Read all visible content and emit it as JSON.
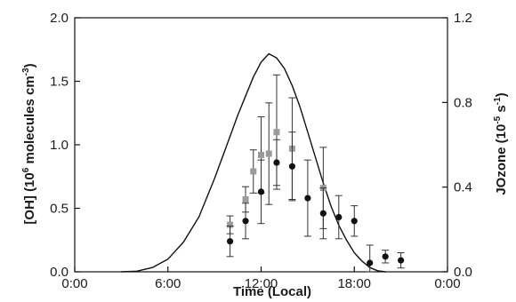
{
  "chart_data": {
    "type": "scatter",
    "xlabel": "Time (Local)",
    "ylabel_left": {
      "pre": "[OH] (10",
      "sup1": "6",
      "mid": " molecules cm",
      "sup2": "-3",
      "post": ")"
    },
    "ylabel_right": {
      "pre": "JOzone (10",
      "sup1": "-5",
      "mid": " s",
      "sup2": "-1",
      "post": ")"
    },
    "x_range_hours": [
      0,
      24
    ],
    "x_ticks": [
      {
        "hour": 0,
        "label": "0:00"
      },
      {
        "hour": 6,
        "label": "6:00"
      },
      {
        "hour": 12,
        "label": "12:00"
      },
      {
        "hour": 18,
        "label": "18:00"
      },
      {
        "hour": 24,
        "label": "0:00"
      }
    ],
    "y_left_range": [
      0,
      2.0
    ],
    "y_left_ticks": [
      {
        "value": 0,
        "label": "0.0"
      },
      {
        "value": 0.5,
        "label": "0.5"
      },
      {
        "value": 1.0,
        "label": "1.0"
      },
      {
        "value": 1.5,
        "label": "1.5"
      },
      {
        "value": 2.0,
        "label": "2.0"
      }
    ],
    "y_right_range": [
      0,
      1.2
    ],
    "y_right_ticks": [
      {
        "value": 0,
        "label": "0.0"
      },
      {
        "value": 0.4,
        "label": "0.4"
      },
      {
        "value": 0.8,
        "label": "0.8"
      },
      {
        "value": 1.2,
        "label": "1.2"
      }
    ],
    "series": [
      {
        "axis": "right",
        "kind": "line",
        "color": "#111111",
        "points": [
          [
            3.0,
            0.0
          ],
          [
            4.0,
            0.003
          ],
          [
            5.0,
            0.02
          ],
          [
            6.0,
            0.06
          ],
          [
            7.0,
            0.14
          ],
          [
            8.0,
            0.26
          ],
          [
            9.0,
            0.44
          ],
          [
            10.0,
            0.64
          ],
          [
            10.5,
            0.74
          ],
          [
            11.0,
            0.83
          ],
          [
            11.5,
            0.92
          ],
          [
            12.0,
            0.99
          ],
          [
            12.5,
            1.03
          ],
          [
            13.0,
            1.01
          ],
          [
            13.5,
            0.96
          ],
          [
            14.0,
            0.88
          ],
          [
            14.5,
            0.78
          ],
          [
            15.0,
            0.66
          ],
          [
            15.5,
            0.54
          ],
          [
            16.0,
            0.42
          ],
          [
            16.5,
            0.31
          ],
          [
            17.0,
            0.22
          ],
          [
            17.5,
            0.15
          ],
          [
            18.0,
            0.09
          ],
          [
            18.5,
            0.05
          ],
          [
            19.0,
            0.02
          ],
          [
            19.5,
            0.005
          ],
          [
            20.0,
            0.0
          ]
        ]
      },
      {
        "axis": "left",
        "kind": "points",
        "marker": "square",
        "color": "#9a9a9a",
        "points": [
          {
            "x": 10.0,
            "y": 0.37,
            "err": 0.07
          },
          {
            "x": 11.0,
            "y": 0.57,
            "err": 0.1
          },
          {
            "x": 11.5,
            "y": 0.79,
            "err": 0.17
          },
          {
            "x": 12.0,
            "y": 0.92,
            "err": 0.3
          },
          {
            "x": 12.5,
            "y": 0.93,
            "err": 0.4
          },
          {
            "x": 13.0,
            "y": 1.1,
            "err": 0.45
          },
          {
            "x": 14.0,
            "y": 0.97,
            "err": 0.4
          },
          {
            "x": 16.0,
            "y": 0.66,
            "err": 0.32
          }
        ]
      },
      {
        "axis": "left",
        "kind": "points",
        "marker": "circle",
        "color": "#111111",
        "points": [
          {
            "x": 10.0,
            "y": 0.24,
            "err": 0.12
          },
          {
            "x": 11.0,
            "y": 0.4,
            "err": 0.14
          },
          {
            "x": 12.0,
            "y": 0.63,
            "err": 0.25
          },
          {
            "x": 13.0,
            "y": 0.86,
            "err": 0.18
          },
          {
            "x": 14.0,
            "y": 0.83,
            "err": 0.27
          },
          {
            "x": 15.0,
            "y": 0.58,
            "err": 0.3
          },
          {
            "x": 16.0,
            "y": 0.46,
            "err": 0.2
          },
          {
            "x": 17.0,
            "y": 0.43,
            "err": 0.17
          },
          {
            "x": 18.0,
            "y": 0.4,
            "err": 0.12
          },
          {
            "x": 19.0,
            "y": 0.07,
            "err": 0.14
          },
          {
            "x": 20.0,
            "y": 0.12,
            "err": 0.05
          },
          {
            "x": 21.0,
            "y": 0.09,
            "err": 0.06
          }
        ]
      }
    ]
  }
}
